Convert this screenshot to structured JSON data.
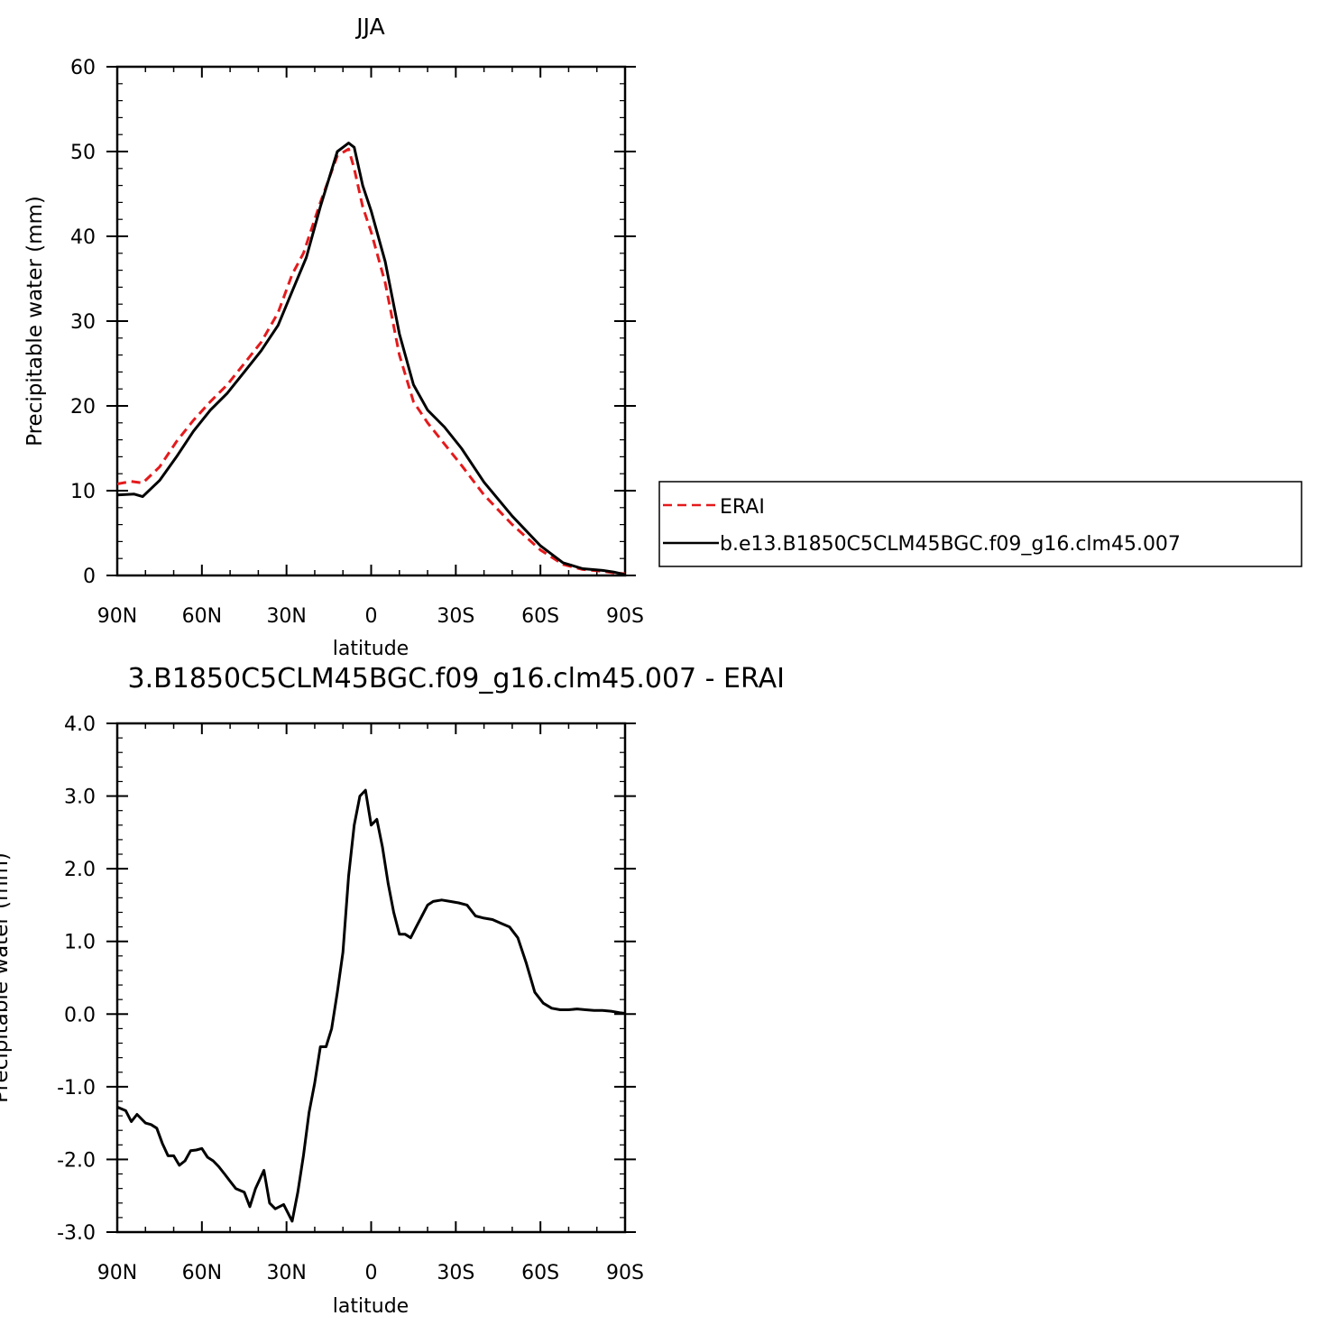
{
  "chart_data": [
    {
      "type": "line",
      "title": "JJA",
      "xlabel": "latitude",
      "ylabel": "Precipitable water (mm)",
      "x_ticks": [
        "90N",
        "60N",
        "30N",
        "0",
        "30S",
        "60S",
        "90S"
      ],
      "x_tick_values": [
        90,
        60,
        30,
        0,
        -30,
        -60,
        -90
      ],
      "xlim": [
        90,
        -90
      ],
      "ylim": [
        0,
        60
      ],
      "y_ticks": [
        "0",
        "10",
        "20",
        "30",
        "40",
        "50",
        "60"
      ],
      "y_tick_values": [
        0,
        10,
        20,
        30,
        40,
        50,
        60
      ],
      "legend_position": "right",
      "colors": {
        "ERAI": "#e41a1c",
        "model": "#000000"
      },
      "series": [
        {
          "name": "ERAI",
          "style": "dashed",
          "color": "#e41a1c",
          "x": [
            90,
            85,
            81,
            75,
            69,
            63,
            57,
            51,
            45,
            39,
            33,
            28,
            24,
            18,
            12,
            8,
            6,
            3,
            0,
            -5,
            -10,
            -15,
            -20,
            -26,
            -32,
            -40,
            -50,
            -60,
            -68,
            -75,
            -82,
            -86,
            -90
          ],
          "y": [
            10.8,
            11.1,
            10.9,
            12.8,
            15.8,
            18.3,
            20.5,
            22.5,
            25.0,
            27.5,
            31.0,
            35.5,
            38.0,
            44.0,
            49.5,
            50.3,
            48.0,
            43.5,
            40.5,
            34.5,
            26.0,
            20.5,
            18.0,
            15.5,
            13.0,
            9.5,
            6.0,
            3.0,
            1.3,
            0.7,
            0.5,
            0.3,
            0.2
          ]
        },
        {
          "name": "b.e13.B1850C5CLM45BGC.f09_g16.clm45.007",
          "style": "solid",
          "color": "#000000",
          "x": [
            90,
            84,
            81,
            75,
            69,
            63,
            57,
            51,
            45,
            39,
            33,
            28,
            23,
            18,
            12,
            8,
            6,
            3,
            0,
            -5,
            -10,
            -15,
            -20,
            -26,
            -32,
            -40,
            -50,
            -60,
            -68,
            -75,
            -82,
            -86,
            -90
          ],
          "y": [
            9.5,
            9.6,
            9.3,
            11.2,
            14.0,
            17.0,
            19.5,
            21.5,
            24.0,
            26.5,
            29.5,
            33.5,
            37.5,
            43.5,
            50.0,
            51.0,
            50.5,
            46.0,
            43.0,
            37.0,
            28.5,
            22.5,
            19.5,
            17.5,
            15.0,
            11.0,
            7.0,
            3.5,
            1.5,
            0.8,
            0.6,
            0.4,
            0.1
          ]
        }
      ]
    },
    {
      "type": "line",
      "title": "3.B1850C5CLM45BGC.f09_g16.clm45.007 - ERAI",
      "xlabel": "latitude",
      "ylabel": "Precipitable water (mm)",
      "x_ticks": [
        "90N",
        "60N",
        "30N",
        "0",
        "30S",
        "60S",
        "90S"
      ],
      "x_tick_values": [
        90,
        60,
        30,
        0,
        -30,
        -60,
        -90
      ],
      "xlim": [
        90,
        -90
      ],
      "ylim": [
        -3.0,
        4.0
      ],
      "y_ticks": [
        "-3.0",
        "-2.0",
        "-1.0",
        "0.0",
        "1.0",
        "2.0",
        "3.0",
        "4.0"
      ],
      "y_tick_values": [
        -3,
        -2,
        -1,
        0,
        1,
        2,
        3,
        4
      ],
      "series": [
        {
          "name": "",
          "style": "solid",
          "color": "#000000",
          "x": [
            90,
            87,
            85,
            83,
            80,
            78,
            76,
            74,
            72,
            70,
            68,
            66,
            64,
            62,
            60,
            58,
            56,
            54,
            52,
            50,
            48,
            45,
            43,
            41,
            38,
            36,
            34,
            31,
            28,
            26,
            24,
            22,
            20,
            18,
            16,
            14,
            12,
            10,
            8,
            6,
            4,
            2,
            0,
            -2,
            -4,
            -6,
            -8,
            -10,
            -12,
            -14,
            -16,
            -18,
            -20,
            -22,
            -25,
            -28,
            -31,
            -34,
            -37,
            -40,
            -43,
            -46,
            -49,
            -52,
            -55,
            -58,
            -61,
            -64,
            -67,
            -70,
            -73,
            -76,
            -79,
            -82,
            -85,
            -88,
            -90
          ],
          "y": [
            -1.28,
            -1.33,
            -1.48,
            -1.38,
            -1.5,
            -1.52,
            -1.57,
            -1.78,
            -1.95,
            -1.95,
            -2.08,
            -2.02,
            -1.88,
            -1.87,
            -1.85,
            -1.97,
            -2.02,
            -2.1,
            -2.2,
            -2.3,
            -2.4,
            -2.45,
            -2.65,
            -2.4,
            -2.15,
            -2.6,
            -2.68,
            -2.62,
            -2.85,
            -2.45,
            -1.95,
            -1.35,
            -0.95,
            -0.45,
            -0.45,
            -0.2,
            0.3,
            0.85,
            1.9,
            2.6,
            3.0,
            3.08,
            2.6,
            2.68,
            2.3,
            1.8,
            1.4,
            1.1,
            1.1,
            1.05,
            1.2,
            1.35,
            1.5,
            1.55,
            1.57,
            1.55,
            1.53,
            1.5,
            1.35,
            1.32,
            1.3,
            1.25,
            1.2,
            1.05,
            0.7,
            0.3,
            0.15,
            0.08,
            0.06,
            0.06,
            0.07,
            0.06,
            0.05,
            0.05,
            0.04,
            0.02,
            0.01
          ]
        }
      ]
    }
  ]
}
